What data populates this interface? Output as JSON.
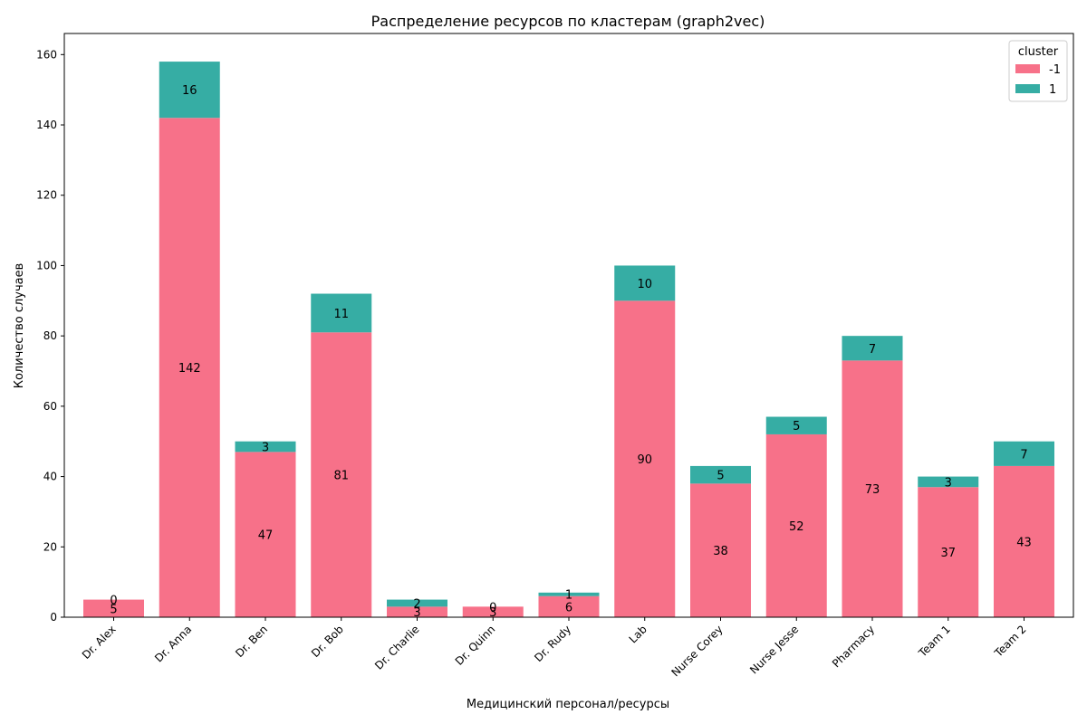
{
  "chart_data": {
    "type": "bar",
    "stacked": true,
    "title": "Распределение ресурсов по кластерам (graph2vec)",
    "xlabel": "Медицинский персонал/ресурсы",
    "ylabel": "Количество случаев",
    "ylim": [
      0,
      166
    ],
    "yticks": [
      0,
      20,
      40,
      60,
      80,
      100,
      120,
      140,
      160
    ],
    "categories": [
      "Dr. Alex",
      "Dr. Anna",
      "Dr. Ben",
      "Dr. Bob",
      "Dr. Charlie",
      "Dr. Quinn",
      "Dr. Rudy",
      "Lab",
      "Nurse Corey",
      "Nurse Jesse",
      "Pharmacy",
      "Team 1",
      "Team 2"
    ],
    "legend": {
      "title": "cluster",
      "placement": "top-right"
    },
    "series": [
      {
        "name": "-1",
        "color": "#f77189",
        "values": [
          5,
          142,
          47,
          81,
          3,
          3,
          6,
          90,
          38,
          52,
          73,
          37,
          43
        ]
      },
      {
        "name": "1",
        "color": "#36ada4",
        "values": [
          0,
          16,
          3,
          11,
          2,
          0,
          1,
          10,
          5,
          5,
          7,
          3,
          7
        ]
      }
    ],
    "grid": false
  }
}
